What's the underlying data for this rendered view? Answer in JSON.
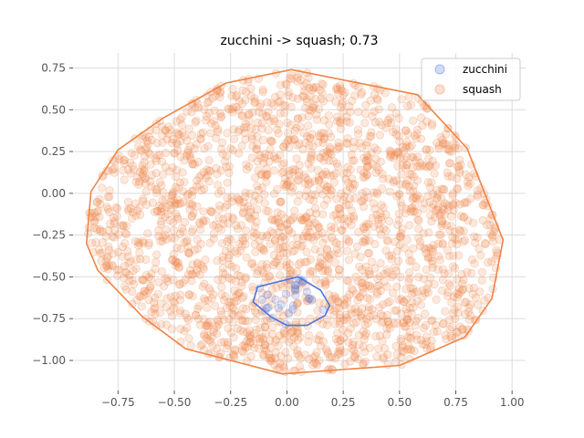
{
  "chart_data": {
    "type": "scatter",
    "title": "zucchini -> squash; 0.73",
    "xlabel": "",
    "ylabel": "",
    "xlim": [
      -0.95,
      1.06
    ],
    "ylim": [
      -1.18,
      0.84
    ],
    "grid": true,
    "legend_position": "top-right",
    "x_ticks": [
      {
        "value": -0.75,
        "label": "−0.75"
      },
      {
        "value": -0.5,
        "label": "−0.50"
      },
      {
        "value": -0.25,
        "label": "−0.25"
      },
      {
        "value": 0.0,
        "label": "0.00"
      },
      {
        "value": 0.25,
        "label": "0.25"
      },
      {
        "value": 0.5,
        "label": "0.50"
      },
      {
        "value": 0.75,
        "label": "0.75"
      },
      {
        "value": 1.0,
        "label": "1.00"
      }
    ],
    "y_ticks": [
      {
        "value": 0.75,
        "label": "0.75"
      },
      {
        "value": 0.5,
        "label": "0.50"
      },
      {
        "value": 0.25,
        "label": "0.25"
      },
      {
        "value": 0.0,
        "label": "0.00"
      },
      {
        "value": -0.25,
        "label": "−0.25"
      },
      {
        "value": -0.5,
        "label": "−0.50"
      },
      {
        "value": -0.75,
        "label": "−0.75"
      },
      {
        "value": -1.0,
        "label": "−1.00"
      }
    ],
    "series": [
      {
        "name": "zucchini",
        "color": "#4c72dd",
        "point_count": 30,
        "seed": 7,
        "hull": [
          [
            0.05,
            -0.5
          ],
          [
            0.15,
            -0.58
          ],
          [
            0.19,
            -0.67
          ],
          [
            0.17,
            -0.73
          ],
          [
            0.09,
            -0.79
          ],
          [
            0.0,
            -0.79
          ],
          [
            -0.07,
            -0.74
          ],
          [
            -0.15,
            -0.65
          ],
          [
            -0.13,
            -0.56
          ]
        ]
      },
      {
        "name": "squash",
        "color": "#ee8548",
        "point_count": 2200,
        "seed": 13,
        "hull": [
          [
            0.02,
            0.74
          ],
          [
            0.58,
            0.59
          ],
          [
            0.8,
            0.27
          ],
          [
            0.96,
            -0.28
          ],
          [
            0.91,
            -0.63
          ],
          [
            0.79,
            -0.86
          ],
          [
            0.5,
            -1.03
          ],
          [
            -0.02,
            -1.08
          ],
          [
            -0.45,
            -0.93
          ],
          [
            -0.64,
            -0.74
          ],
          [
            -0.84,
            -0.46
          ],
          [
            -0.89,
            -0.3
          ],
          [
            -0.87,
            0.01
          ],
          [
            -0.75,
            0.26
          ],
          [
            -0.55,
            0.45
          ],
          [
            -0.27,
            0.66
          ]
        ]
      }
    ]
  }
}
